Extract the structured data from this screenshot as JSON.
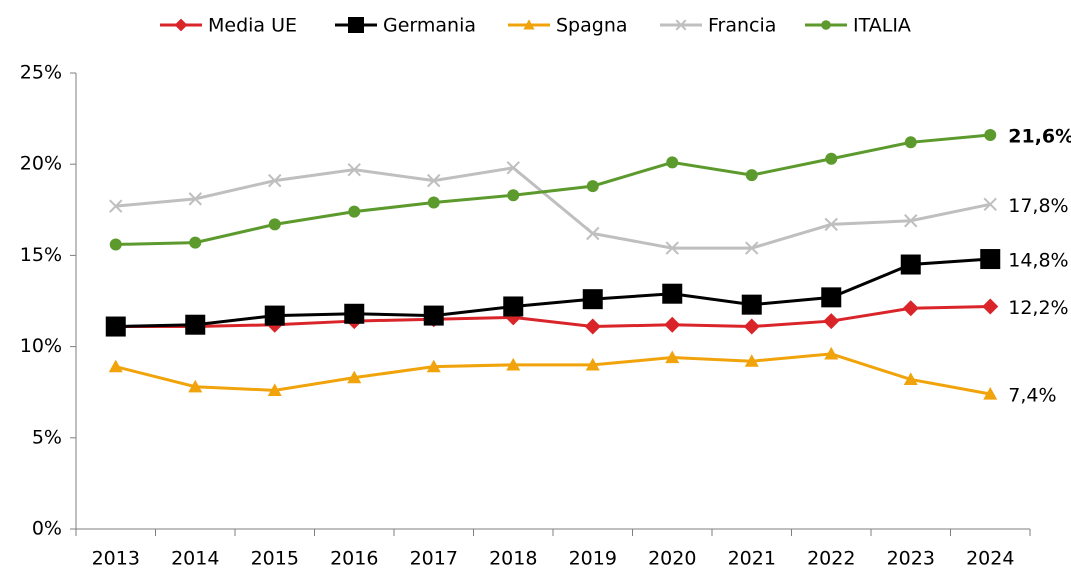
{
  "chart_data": {
    "type": "line",
    "categories": [
      "2013",
      "2014",
      "2015",
      "2016",
      "2017",
      "2018",
      "2019",
      "2020",
      "2021",
      "2022",
      "2023",
      "2024"
    ],
    "ylim": [
      0,
      25
    ],
    "yticks": [
      {
        "value": 0,
        "label": "0%"
      },
      {
        "value": 5,
        "label": "5%"
      },
      {
        "value": 10,
        "label": "10%"
      },
      {
        "value": 15,
        "label": "15%"
      },
      {
        "value": 20,
        "label": "20%"
      },
      {
        "value": 25,
        "label": "25%"
      }
    ],
    "grid": false,
    "legend": "top",
    "series": [
      {
        "name": "Media UE",
        "color": "#d9252a",
        "marker": "diamond",
        "values": [
          11.1,
          11.1,
          11.2,
          11.4,
          11.5,
          11.6,
          11.1,
          11.2,
          11.1,
          11.4,
          12.1,
          12.2
        ],
        "value_labels": [
          null,
          null,
          null,
          null,
          null,
          null,
          null,
          null,
          null,
          null,
          null,
          "12,2%"
        ]
      },
      {
        "name": "Germania",
        "color": "#000000",
        "marker": "square",
        "values": [
          11.1,
          11.2,
          11.7,
          11.8,
          11.7,
          12.2,
          12.6,
          12.9,
          12.3,
          12.7,
          14.5,
          14.8
        ],
        "value_labels": [
          null,
          null,
          null,
          null,
          null,
          null,
          null,
          null,
          null,
          null,
          null,
          "14,8%"
        ]
      },
      {
        "name": "Spagna",
        "color": "#f0a30a",
        "marker": "triangle",
        "values": [
          8.9,
          7.8,
          7.6,
          8.3,
          8.9,
          9.0,
          9.0,
          9.4,
          9.2,
          9.6,
          8.2,
          7.4
        ],
        "value_labels": [
          null,
          null,
          null,
          null,
          null,
          null,
          null,
          null,
          null,
          null,
          null,
          "7,4%"
        ]
      },
      {
        "name": "Francia",
        "color": "#bfbfbf",
        "marker": "x",
        "values": [
          17.7,
          18.1,
          19.1,
          19.7,
          19.1,
          19.8,
          16.2,
          15.4,
          15.4,
          16.7,
          16.9,
          17.8
        ],
        "value_labels": [
          null,
          null,
          null,
          null,
          null,
          null,
          null,
          null,
          null,
          null,
          null,
          "17,8%"
        ]
      },
      {
        "name": "ITALIA",
        "color": "#5c9a2d",
        "marker": "circle",
        "values": [
          15.6,
          15.7,
          16.7,
          17.4,
          17.9,
          18.3,
          18.8,
          20.1,
          19.4,
          20.3,
          21.2,
          21.6
        ],
        "value_labels": [
          null,
          null,
          null,
          null,
          null,
          null,
          null,
          null,
          null,
          null,
          null,
          "21,6%"
        ]
      }
    ]
  }
}
